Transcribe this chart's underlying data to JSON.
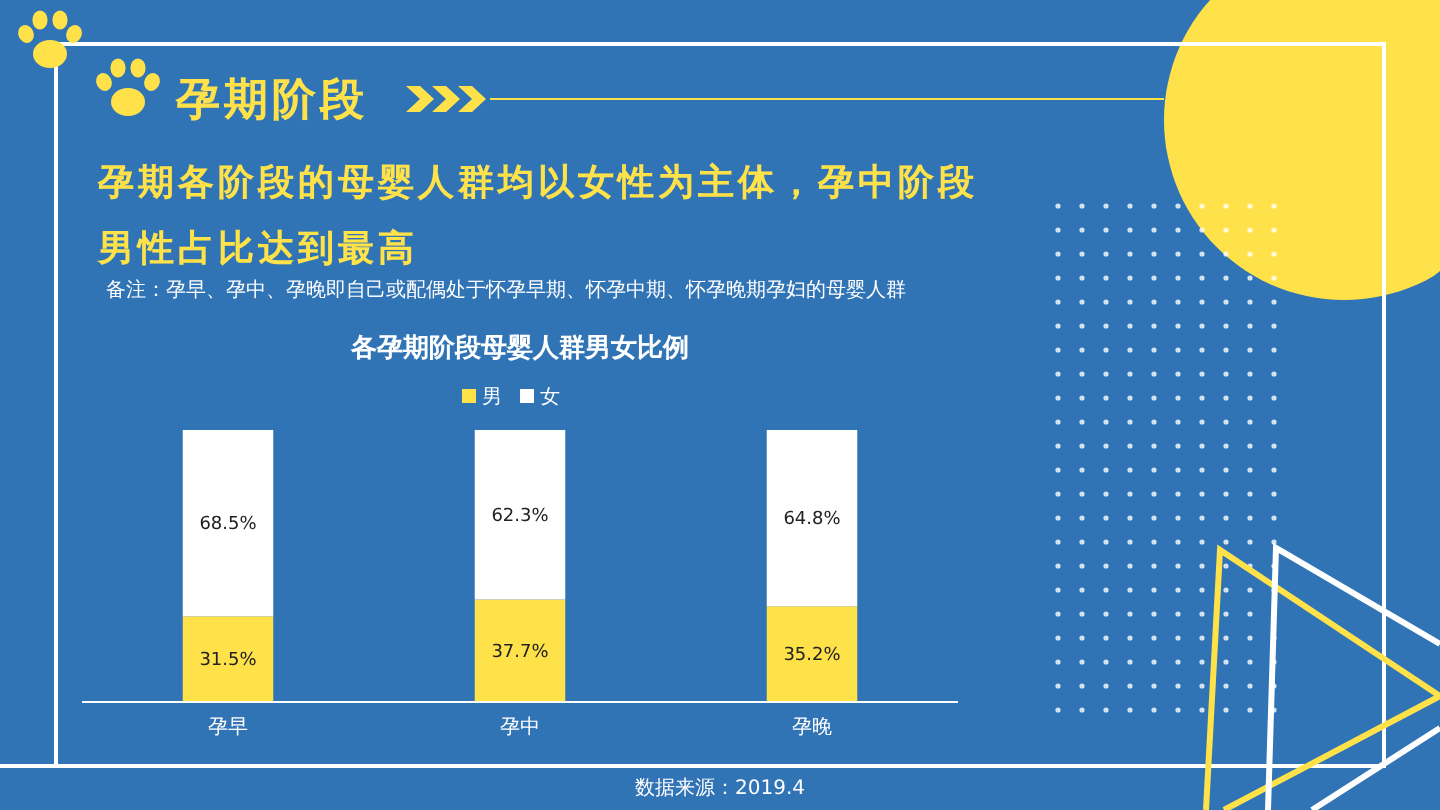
{
  "chart_data": {
    "type": "bar",
    "title": "各孕期阶段母婴人群男女比例",
    "annotations": [
      "孕期阶段",
      "孕期各阶段的母婴人群均以女性为主体，孕中阶段男性占比达到最高",
      "备注：孕早、孕中、孕晚即自己或配偶处于怀孕早期、怀孕中期、怀孕晚期孕妇的母婴人群",
      "数据来源：2019.4"
    ],
    "categories": [
      "孕早",
      "孕中",
      "孕晚"
    ],
    "series": [
      {
        "name": "男",
        "color": "#ffe24a",
        "values": [
          31.5,
          37.7,
          35.2
        ],
        "value_labels": [
          "31.5%",
          "37.7%",
          "35.2%"
        ]
      },
      {
        "name": "女",
        "color": "#ffffff",
        "values": [
          68.5,
          62.3,
          64.8
        ],
        "value_labels": [
          "68.5%",
          "62.3%",
          "64.8%"
        ]
      }
    ],
    "stacked": true,
    "ylim": [
      0,
      100
    ],
    "tick_labels": "x",
    "legend": "top"
  }
}
